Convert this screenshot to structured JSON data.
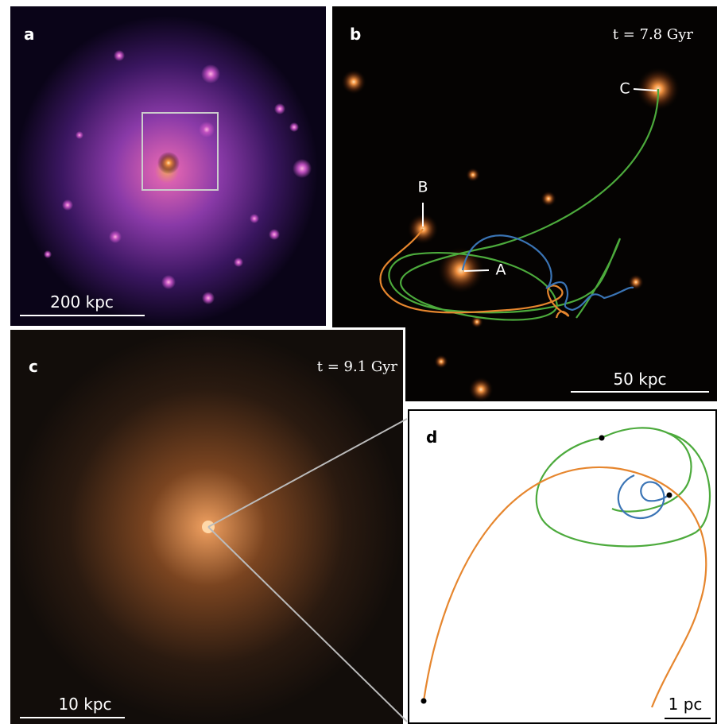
{
  "panels": [
    {
      "label": "a",
      "scale_bar": "200 kpc"
    },
    {
      "label": "b",
      "time": "t = 7.8 Gyr",
      "annotations": [
        "C",
        "B",
        "A"
      ],
      "scale_bar": "50 kpc"
    },
    {
      "label": "c",
      "time": "t = 9.1 Gyr",
      "scale_bar": "10 kpc"
    },
    {
      "label": "d",
      "scale_bar": "1 pc"
    }
  ]
}
